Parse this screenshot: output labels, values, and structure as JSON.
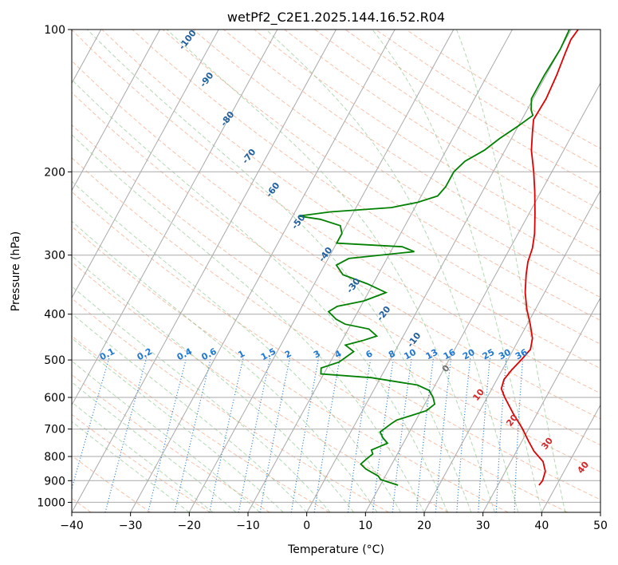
{
  "chart_data": {
    "type": "line",
    "title": "wetPf2_C2E1.2025.144.16.52.R04",
    "xlabel": "Temperature (°C)",
    "ylabel": "Pressure (hPa)",
    "xlim": [
      -40,
      50
    ],
    "ylim": [
      1050,
      100
    ],
    "yscale": "log",
    "x_ticks": [
      "−40",
      "−30",
      "−20",
      "−10",
      "0",
      "10",
      "20",
      "30",
      "40",
      "50"
    ],
    "x_tick_values": [
      -40,
      -30,
      -20,
      -10,
      0,
      10,
      20,
      30,
      40,
      50
    ],
    "y_ticks": [
      "100",
      "200",
      "300",
      "400",
      "500",
      "600",
      "700",
      "800",
      "900",
      "1000"
    ],
    "y_tick_values": [
      100,
      200,
      300,
      400,
      500,
      600,
      700,
      800,
      900,
      1000
    ],
    "grid": true,
    "series": [
      {
        "color": "#e00000",
        "points": [
          [
            37,
            920
          ],
          [
            37.2,
            900
          ],
          [
            36.8,
            860
          ],
          [
            35.5,
            820
          ],
          [
            33,
            780
          ],
          [
            31,
            740
          ],
          [
            29,
            700
          ],
          [
            26,
            650
          ],
          [
            23,
            600
          ],
          [
            21.6,
            575
          ],
          [
            21.2,
            550
          ],
          [
            21.6,
            525
          ],
          [
            22.3,
            500
          ],
          [
            22.9,
            475
          ],
          [
            22.2,
            450
          ],
          [
            20.5,
            420
          ],
          [
            18.5,
            390
          ],
          [
            16.7,
            360
          ],
          [
            15.2,
            330
          ],
          [
            14.3,
            310
          ],
          [
            13.8,
            290
          ],
          [
            12.8,
            270
          ],
          [
            11,
            245
          ],
          [
            8.9,
            220
          ],
          [
            6.9,
            200
          ],
          [
            4.5,
            180
          ],
          [
            3,
            165
          ],
          [
            2,
            155
          ],
          [
            2.2,
            140
          ],
          [
            1.8,
            125
          ],
          [
            1.2,
            112
          ],
          [
            0.9,
            105
          ],
          [
            1.2,
            100
          ]
        ]
      },
      {
        "color": "#008000",
        "points": [
          [
            13,
            920
          ],
          [
            9.5,
            895
          ],
          [
            8.8,
            880
          ],
          [
            6,
            850
          ],
          [
            4.7,
            830
          ],
          [
            5.2,
            810
          ],
          [
            5.8,
            790
          ],
          [
            5.2,
            775
          ],
          [
            7.3,
            750
          ],
          [
            6,
            730
          ],
          [
            5,
            710
          ],
          [
            6.2,
            680
          ],
          [
            6.7,
            670
          ],
          [
            8.8,
            655
          ],
          [
            10.9,
            640
          ],
          [
            11.7,
            620
          ],
          [
            10.8,
            600
          ],
          [
            9.5,
            580
          ],
          [
            7,
            565
          ],
          [
            -1.5,
            545
          ],
          [
            -10.5,
            535
          ],
          [
            -11,
            520
          ],
          [
            -8.5,
            505
          ],
          [
            -7,
            480
          ],
          [
            -9,
            465
          ],
          [
            -6.5,
            455
          ],
          [
            -4.5,
            445
          ],
          [
            -6.5,
            430
          ],
          [
            -11,
            420
          ],
          [
            -13,
            410
          ],
          [
            -15,
            395
          ],
          [
            -14,
            385
          ],
          [
            -10,
            375
          ],
          [
            -7,
            360
          ],
          [
            -11,
            345
          ],
          [
            -16,
            330
          ],
          [
            -18,
            315
          ],
          [
            -16.5,
            305
          ],
          [
            -6,
            295
          ],
          [
            -8.5,
            288
          ],
          [
            -20,
            283
          ],
          [
            -20,
            270
          ],
          [
            -21,
            260
          ],
          [
            -25,
            252
          ],
          [
            -29,
            248
          ],
          [
            -24,
            243
          ],
          [
            -14,
            238
          ],
          [
            -10,
            232
          ],
          [
            -7.2,
            225
          ],
          [
            -6.7,
            215
          ],
          [
            -6.7,
            200
          ],
          [
            -5.8,
            190
          ],
          [
            -3.5,
            180
          ],
          [
            -2,
            170
          ],
          [
            0,
            160
          ],
          [
            1.5,
            152
          ],
          [
            0.7,
            148
          ],
          [
            -0.3,
            140
          ],
          [
            -0.3,
            125
          ],
          [
            0,
            110
          ],
          [
            -0.3,
            100
          ]
        ]
      }
    ],
    "mixing_ratio_labels": [
      "0.1",
      "0.2",
      "0.4",
      "0.6",
      "1",
      "1.5",
      "2",
      "3",
      "4",
      "6",
      "8",
      "10",
      "13",
      "16",
      "20",
      "25",
      "30",
      "36"
    ],
    "dry_adiabat_labels": [
      "-100",
      "-90",
      "-80",
      "-70",
      "-60",
      "-50",
      "-40",
      "-30",
      "-20",
      "-10",
      "0",
      "10",
      "20",
      "30",
      "40"
    ],
    "colors": {
      "temperature": "#e00000",
      "dewpoint": "#008000",
      "isotherm": "#a9a9a9",
      "isobar": "#a9a9a9",
      "dry_adiabat": "#f4a582",
      "moist_adiabat": "#7fbf7f",
      "mixing_ratio": "#1f77d4",
      "label_cold": "#1f5f9f",
      "label_warm": "#d62728",
      "label_zero": "#707070"
    }
  }
}
